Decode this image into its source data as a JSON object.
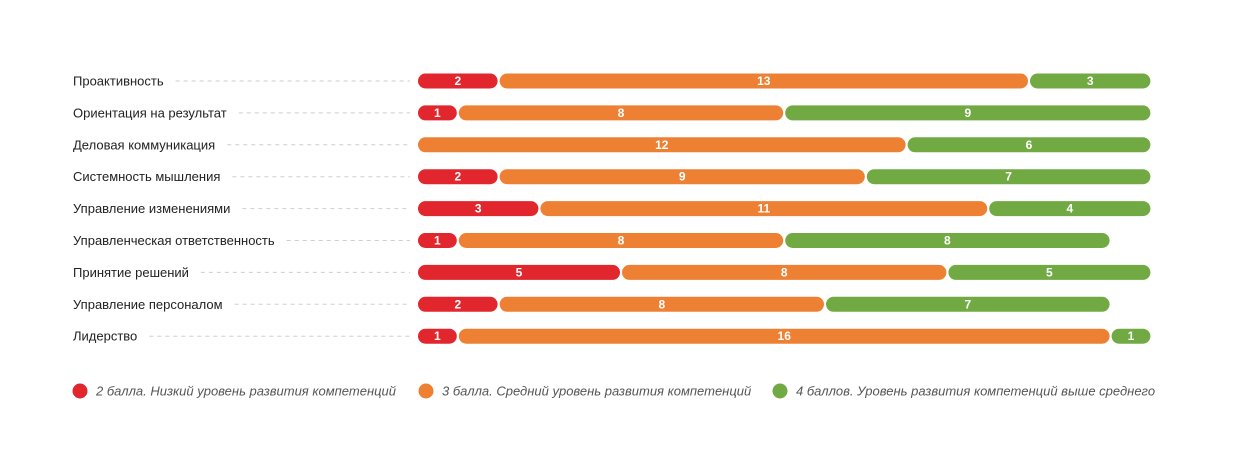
{
  "chart_data": {
    "type": "bar",
    "orientation": "horizontal",
    "stacked": true,
    "title": "",
    "xlabel": "",
    "ylabel": "",
    "categories": [
      "Проактивность",
      "Ориентация на результат",
      "Деловая коммуникация",
      "Системность мышления",
      "Управление изменениями",
      "Управленческая ответственность",
      "Принятие решений",
      "Управление персоналом",
      "Лидерство"
    ],
    "series": [
      {
        "name": "2 балла. Низкий уровень развития компетенций",
        "color": "#e2262d",
        "values": [
          2,
          1,
          0,
          2,
          3,
          1,
          5,
          2,
          1
        ]
      },
      {
        "name": "3 балла. Средний уровень развития компетенций",
        "color": "#ee8034",
        "values": [
          13,
          8,
          12,
          9,
          11,
          8,
          8,
          8,
          16
        ]
      },
      {
        "name": "4 баллов. Уровень развития компетенций выше среднего",
        "color": "#71aa43",
        "values": [
          3,
          9,
          6,
          7,
          4,
          8,
          5,
          7,
          1
        ]
      }
    ],
    "xlim": [
      0,
      18
    ],
    "grid": false,
    "legend_position": "bottom"
  }
}
